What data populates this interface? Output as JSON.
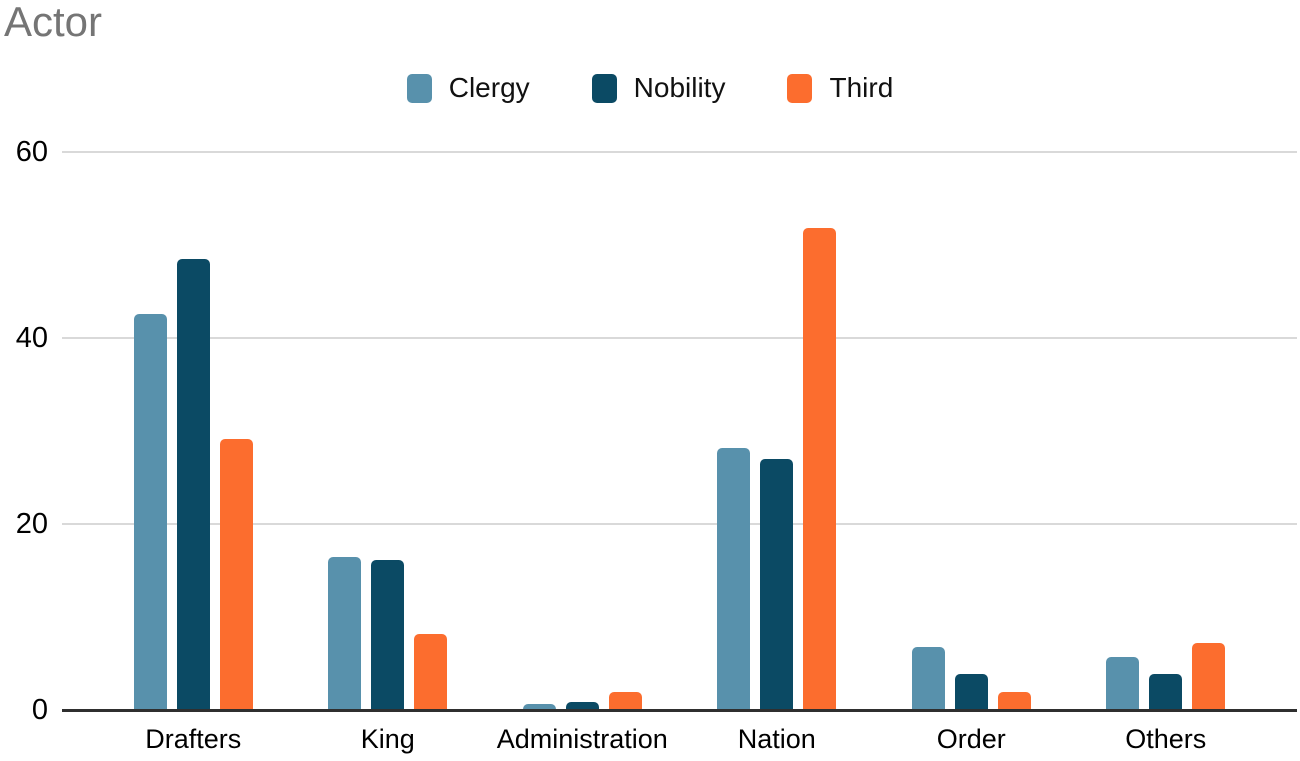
{
  "title": "Actor",
  "colors": {
    "title_text": "#757575",
    "grid": "#d9d9d9",
    "axis": "#2f2f2f",
    "label_text": "#000000"
  },
  "chart_data": {
    "type": "bar",
    "title": "Actor",
    "xlabel": "",
    "ylabel": "",
    "grid": true,
    "legend_position": "top-center",
    "ylim": [
      0,
      60
    ],
    "yticks": [
      0,
      20,
      40,
      60
    ],
    "categories": [
      "Drafters",
      "King",
      "Administration",
      "Nation",
      "Order",
      "Others"
    ],
    "series": [
      {
        "name": "Clergy",
        "color": "#5891ac",
        "values": [
          42.5,
          16.3,
          0.5,
          28.1,
          6.7,
          5.6
        ]
      },
      {
        "name": "Nobility",
        "color": "#0b4a64",
        "values": [
          48.4,
          16.0,
          0.8,
          26.9,
          3.8,
          3.8
        ]
      },
      {
        "name": "Third",
        "color": "#fc6d2e",
        "values": [
          29.0,
          8.1,
          1.8,
          51.7,
          1.8,
          7.1
        ]
      }
    ]
  }
}
